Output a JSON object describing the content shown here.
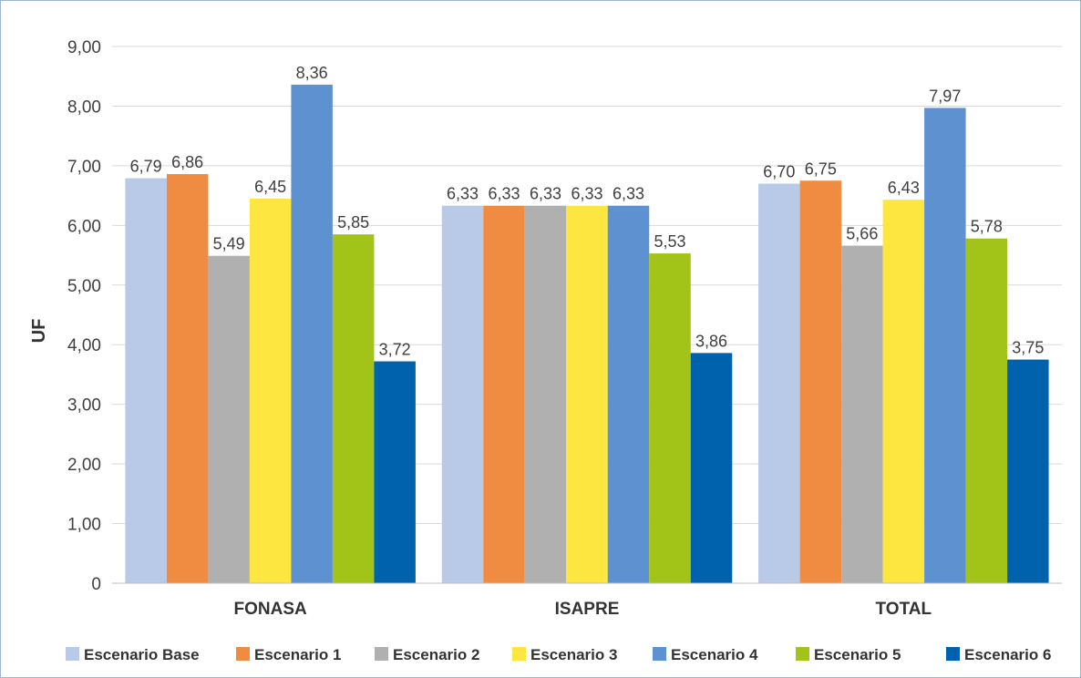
{
  "chart_data": {
    "type": "bar",
    "ylabel": "UF",
    "xlabel": "",
    "ylim": [
      0,
      9
    ],
    "yticks": [
      "0",
      "1,00",
      "2,00",
      "3,00",
      "4,00",
      "5,00",
      "6,00",
      "7,00",
      "8,00",
      "9,00"
    ],
    "grid": true,
    "legend_position": "bottom",
    "categories": [
      "FONASA",
      "ISAPRE",
      "TOTAL"
    ],
    "series": [
      {
        "name": "Escenario Base",
        "color": "#b9c9e8",
        "values": [
          6.79,
          6.33,
          6.7
        ],
        "labels": [
          "6,79",
          "6,33",
          "6,70"
        ]
      },
      {
        "name": "Escenario 1",
        "color": "#f08c42",
        "values": [
          6.86,
          6.33,
          6.75
        ],
        "labels": [
          "6,86",
          "6,33",
          "6,75"
        ]
      },
      {
        "name": "Escenario 2",
        "color": "#b0b0b0",
        "values": [
          5.49,
          6.33,
          5.66
        ],
        "labels": [
          "5,49",
          "6,33",
          "5,66"
        ]
      },
      {
        "name": "Escenario 3",
        "color": "#fde63f",
        "values": [
          6.45,
          6.33,
          6.43
        ],
        "labels": [
          "6,45",
          "6,33",
          "6,43"
        ]
      },
      {
        "name": "Escenario 4",
        "color": "#5e91cf",
        "values": [
          8.36,
          6.33,
          7.97
        ],
        "labels": [
          "8,36",
          "6,33",
          "7,97"
        ]
      },
      {
        "name": "Escenario 5",
        "color": "#a2c418",
        "values": [
          5.85,
          5.53,
          5.78
        ],
        "labels": [
          "5,85",
          "5,53",
          "5,78"
        ]
      },
      {
        "name": "Escenario 6",
        "color": "#0062ac",
        "values": [
          3.72,
          3.86,
          3.75
        ],
        "labels": [
          "3,72",
          "3,86",
          "3,75"
        ]
      }
    ]
  }
}
